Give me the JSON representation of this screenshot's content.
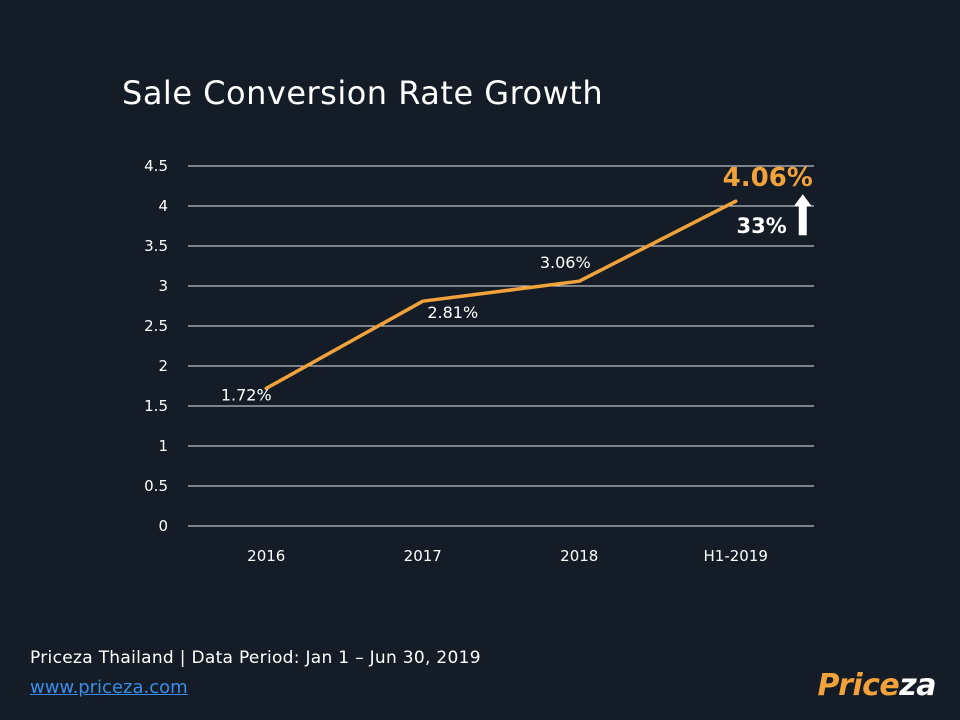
{
  "chart_data": {
    "type": "line",
    "title": "Sale Conversion Rate Growth",
    "categories": [
      "2016",
      "2017",
      "2018",
      "H1-2019"
    ],
    "series": [
      {
        "name": "Sale Conversion Rate",
        "values": [
          1.72,
          2.81,
          3.06,
          4.06
        ],
        "color": "#f2a23a"
      }
    ],
    "data_labels": [
      "1.72%",
      "2.81%",
      "3.06%",
      "4.06%"
    ],
    "ylim": [
      0,
      4.5
    ],
    "yticks": [
      "0",
      "0.5",
      "1",
      "1.5",
      "2",
      "2.5",
      "3",
      "3.5",
      "4",
      "4.5"
    ],
    "grid": true,
    "annotation": {
      "growth": "33%",
      "direction": "up"
    }
  },
  "footer": {
    "source": "Priceza Thailand | Data Period: Jan 1 – Jun 30, 2019",
    "link": "www.priceza.com"
  },
  "logo": {
    "part1": "Price",
    "part2": "za"
  },
  "colors": {
    "background": "#141d27",
    "accent": "#f2a23a",
    "text": "#ffffff",
    "link": "#3a8ee8",
    "grid": "#e8e8e8"
  }
}
